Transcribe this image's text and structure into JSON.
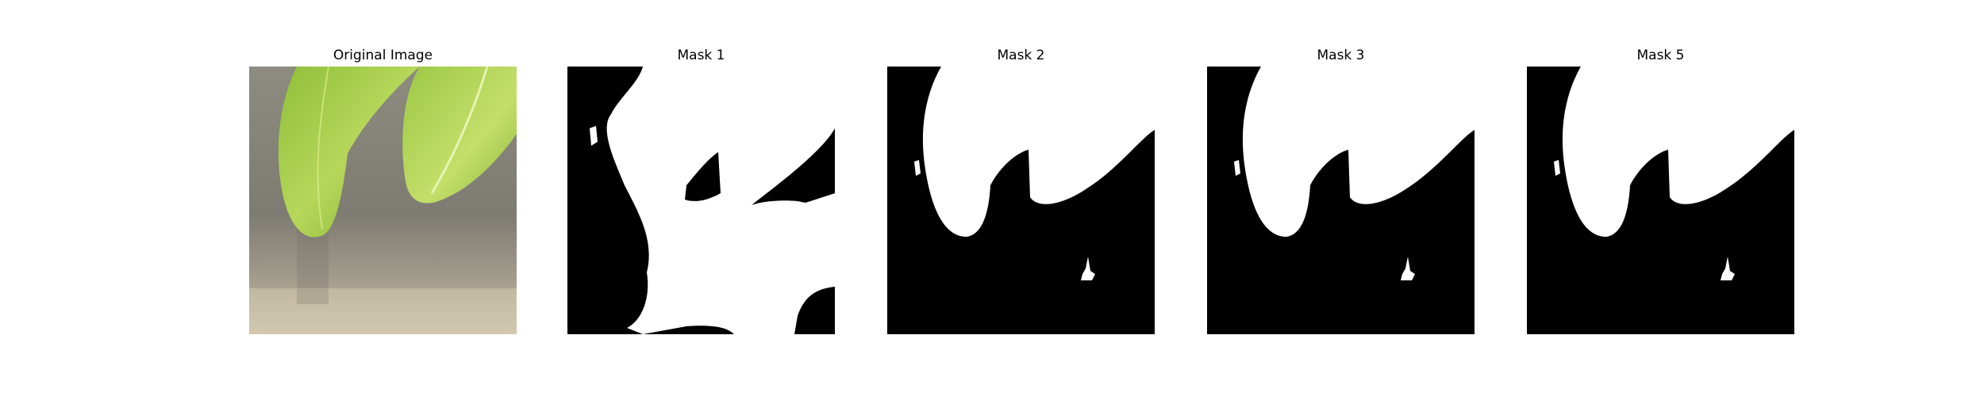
{
  "figure": {
    "panels": [
      {
        "title": "Original Image",
        "kind": "photo"
      },
      {
        "title": "Mask 1",
        "kind": "mask"
      },
      {
        "title": "Mask 2",
        "kind": "mask"
      },
      {
        "title": "Mask 3",
        "kind": "mask"
      },
      {
        "title": "Mask 5",
        "kind": "mask"
      }
    ]
  },
  "colors": {
    "mask_foreground": "#ffffff",
    "mask_background": "#000000",
    "leaf_light": "#b5d45a",
    "leaf_dark": "#7ea832",
    "background_gray": "#8a877c",
    "background_light": "#d6cdb0"
  }
}
